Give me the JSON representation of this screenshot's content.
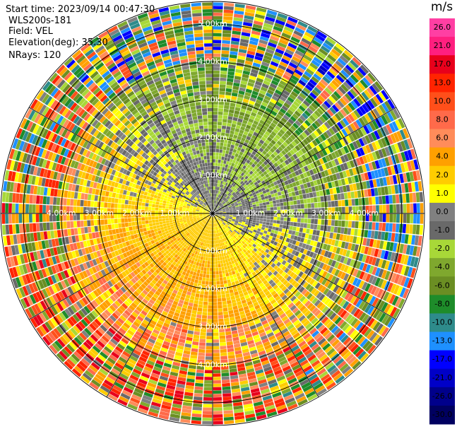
{
  "header": {
    "start_time": "Start time: 2023/09/14 00:47:30",
    "instrument": "WLS200s-181",
    "field": "Field: VEL",
    "elevation": "Elevation(deg): 35.30",
    "nrays": "NRays: 120"
  },
  "chart_data": {
    "type": "ppi-polar",
    "field": "VEL",
    "nrays": 120,
    "range_rings_km": [
      1.0,
      2.0,
      3.0,
      4.0,
      5.0
    ],
    "ring_labels": [
      "1.00km",
      "2.00km",
      "3.00km",
      "4.00km",
      "5.00km"
    ],
    "max_range_km": 5.6,
    "colorbar": {
      "unit": "m/s",
      "tick_labels": [
        "26.0",
        "21.0",
        "17.0",
        "13.0",
        "10.0",
        "8.0",
        "6.0",
        "4.0",
        "2.0",
        "1.0",
        "0.0",
        "-1.0",
        "-2.0",
        "-4.0",
        "-6.0",
        "-8.0",
        "-10.0",
        "-13.0",
        "-17.0",
        "-21.0",
        "-26.0",
        "-30.0"
      ],
      "bins": [
        {
          "lo": 26,
          "hi": 30,
          "color": "#ff3fa3"
        },
        {
          "lo": 21,
          "hi": 26,
          "color": "#ff1f7f"
        },
        {
          "lo": 17,
          "hi": 21,
          "color": "#e8001c"
        },
        {
          "lo": 13,
          "hi": 17,
          "color": "#ff2400"
        },
        {
          "lo": 10,
          "hi": 13,
          "color": "#ff4f1a"
        },
        {
          "lo": 8,
          "hi": 10,
          "color": "#ff6a4a"
        },
        {
          "lo": 6,
          "hi": 8,
          "color": "#ff8c5a"
        },
        {
          "lo": 4,
          "hi": 6,
          "color": "#ffa000"
        },
        {
          "lo": 2,
          "hi": 4,
          "color": "#ffcc00"
        },
        {
          "lo": 1,
          "hi": 2,
          "color": "#ffff00"
        },
        {
          "lo": 0,
          "hi": 1,
          "color": "#808080"
        },
        {
          "lo": -1,
          "hi": 0,
          "color": "#696969"
        },
        {
          "lo": -2,
          "hi": -1,
          "color": "#a8d838"
        },
        {
          "lo": -4,
          "hi": -2,
          "color": "#7fa82e"
        },
        {
          "lo": -6,
          "hi": -4,
          "color": "#6b8e23"
        },
        {
          "lo": -8,
          "hi": -6,
          "color": "#1e8c2a"
        },
        {
          "lo": -10,
          "hi": -8,
          "color": "#2e8b8b"
        },
        {
          "lo": -13,
          "hi": -10,
          "color": "#1e90ff"
        },
        {
          "lo": -17,
          "hi": -13,
          "color": "#0000ff"
        },
        {
          "lo": -21,
          "hi": -17,
          "color": "#0000c8"
        },
        {
          "lo": -26,
          "hi": -21,
          "color": "#00008b"
        },
        {
          "lo": -30,
          "hi": -26,
          "color": "#000060"
        }
      ]
    }
  }
}
